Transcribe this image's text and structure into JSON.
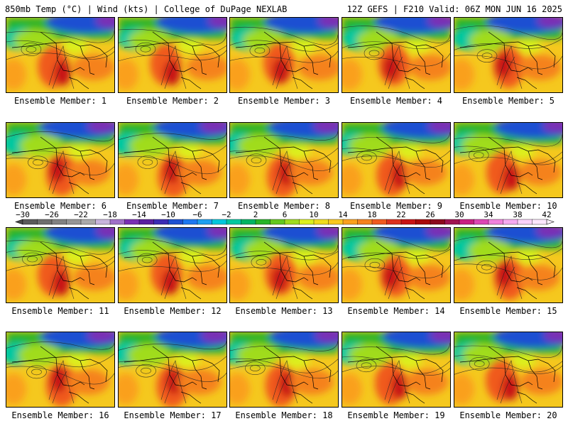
{
  "header": {
    "left": "850mb Temp (°C) | Wind (kts) | College of DuPage NEXLAB",
    "right": "12Z GEFS | F210 Valid: 06Z MON JUN 16 2025"
  },
  "panels": [
    {
      "label": "Ensemble Member: 1"
    },
    {
      "label": "Ensemble Member: 2"
    },
    {
      "label": "Ensemble Member: 3"
    },
    {
      "label": "Ensemble Member: 4"
    },
    {
      "label": "Ensemble Member: 5"
    },
    {
      "label": "Ensemble Member: 6"
    },
    {
      "label": "Ensemble Member: 7"
    },
    {
      "label": "Ensemble Member: 8"
    },
    {
      "label": "Ensemble Member: 9"
    },
    {
      "label": "Ensemble Member: 10"
    },
    {
      "label": "Ensemble Member: 11"
    },
    {
      "label": "Ensemble Member: 12"
    },
    {
      "label": "Ensemble Member: 13"
    },
    {
      "label": "Ensemble Member: 14"
    },
    {
      "label": "Ensemble Member: 15"
    },
    {
      "label": "Ensemble Member: 16"
    },
    {
      "label": "Ensemble Member: 17"
    },
    {
      "label": "Ensemble Member: 18"
    },
    {
      "label": "Ensemble Member: 19"
    },
    {
      "label": "Ensemble Member: 20"
    }
  ],
  "colorbar": {
    "ticks": [
      "−30",
      "−26",
      "−22",
      "−18",
      "−14",
      "−10",
      "−6",
      "−2",
      "2",
      "6",
      "10",
      "14",
      "18",
      "22",
      "26",
      "30",
      "34",
      "38",
      "42"
    ],
    "colors": [
      "#5a5a5a",
      "#6e6e6e",
      "#828282",
      "#969696",
      "#aaaaaa",
      "#c8b4dc",
      "#a070c8",
      "#7a2fb4",
      "#5a1fa0",
      "#3c2cb4",
      "#1e50d2",
      "#1e78f0",
      "#1ea0f0",
      "#00c8dc",
      "#00c8a0",
      "#00b464",
      "#28b428",
      "#64c81e",
      "#a0dc1e",
      "#dcf01e",
      "#f0dc1e",
      "#fac81e",
      "#faa01e",
      "#f5821e",
      "#f05a1e",
      "#dc321e",
      "#c81414",
      "#aa0a0a",
      "#8c0a1e",
      "#a01450",
      "#c81e82",
      "#dc46b4",
      "#f082dc",
      "#f5aaf0",
      "#fad2fa",
      "#fce6fc"
    ]
  }
}
